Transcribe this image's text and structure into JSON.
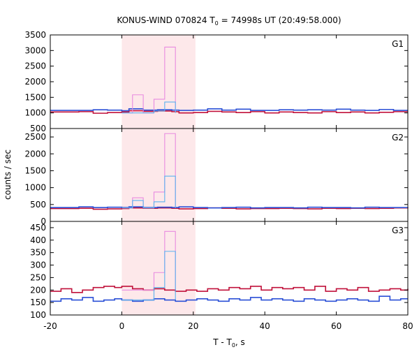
{
  "chart_data": {
    "type": "line",
    "title": {
      "main": "KONUS-WIND 070824 T",
      "sub": "0",
      "rest": " = 74998s UT (20:49:58.000)"
    },
    "xlabel": {
      "main": "T - T",
      "sub": "0",
      "rest": ", s"
    },
    "ylabel": "counts / sec",
    "xlim": [
      -20,
      80
    ],
    "x_ticks": [
      -20,
      0,
      20,
      40,
      60,
      80
    ],
    "highlight_interval": [
      0,
      20.6
    ],
    "colors": {
      "highlight": "#fde8ea",
      "red_series": "#c0103a",
      "blue_series": "#2a4fd6",
      "pink_series": "#e88ae0",
      "cyan_series": "#5ab2f0",
      "reference_line": "#c0c0c0"
    },
    "panels": [
      {
        "label": "G1",
        "ylim": [
          500,
          3500
        ],
        "y_ticks": [
          500,
          1000,
          1500,
          2000,
          2500,
          3000,
          3500
        ],
        "series": [
          {
            "role": "red",
            "x": [
              -20,
              -12,
              -8,
              -4,
              0,
              2,
              6,
              10,
              14,
              16,
              20,
              24,
              28,
              32,
              36,
              40,
              44,
              48,
              52,
              56,
              60,
              64,
              68,
              72,
              76,
              80
            ],
            "y": [
              1030,
              1040,
              990,
              1010,
              1030,
              1070,
              1050,
              1060,
              1040,
              1000,
              1010,
              1050,
              1030,
              1010,
              1040,
              1000,
              1030,
              1010,
              1000,
              1040,
              1010,
              1030,
              1000,
              1020,
              1040,
              1040
            ]
          },
          {
            "role": "blue",
            "x": [
              -20,
              -12,
              -8,
              -4,
              0,
              2,
              6,
              10,
              14,
              16,
              20,
              24,
              28,
              32,
              36,
              40,
              44,
              48,
              52,
              56,
              60,
              64,
              68,
              72,
              76,
              80
            ],
            "y": [
              1080,
              1080,
              1100,
              1090,
              1070,
              1130,
              1090,
              1100,
              1090,
              1080,
              1090,
              1130,
              1090,
              1120,
              1080,
              1080,
              1100,
              1090,
              1100,
              1090,
              1120,
              1090,
              1080,
              1110,
              1080,
              1080
            ]
          },
          {
            "role": "pink",
            "x": [
              0,
              3,
              6,
              9,
              12
            ],
            "y": [
              1000,
              1580,
              1000,
              1440,
              3110
            ]
          },
          {
            "role": "cyan",
            "x": [
              0,
              9,
              12
            ],
            "y": [
              1000,
              1060,
              1350
            ]
          }
        ]
      },
      {
        "label": "G2",
        "ylim": [
          0,
          2750
        ],
        "y_ticks": [
          0,
          500,
          1000,
          1500,
          2000,
          2500
        ],
        "series": [
          {
            "role": "red",
            "x": [
              -20,
              -12,
              -8,
              -4,
              0,
              2,
              6,
              10,
              14,
              16,
              20,
              24,
              28,
              32,
              36,
              40,
              44,
              48,
              52,
              56,
              60,
              64,
              68,
              72,
              76,
              80
            ],
            "y": [
              380,
              390,
              360,
              370,
              380,
              400,
              390,
              400,
              390,
              370,
              380,
              400,
              390,
              370,
              380,
              380,
              390,
              380,
              370,
              390,
              380,
              390,
              380,
              390,
              400,
              390
            ]
          },
          {
            "role": "blue",
            "x": [
              -20,
              -12,
              -8,
              -4,
              0,
              2,
              6,
              10,
              14,
              16,
              20,
              24,
              28,
              32,
              36,
              40,
              44,
              48,
              52,
              56,
              60,
              64,
              68,
              72,
              76,
              80
            ],
            "y": [
              410,
              430,
              410,
              420,
              410,
              430,
              410,
              420,
              410,
              430,
              410,
              400,
              410,
              420,
              400,
              410,
              410,
              400,
              420,
              410,
              410,
              400,
              420,
              410,
              410,
              410
            ]
          },
          {
            "role": "pink",
            "x": [
              0,
              3,
              6,
              9,
              12
            ],
            "y": [
              400,
              700,
              400,
              870,
              2600
            ]
          },
          {
            "role": "cyan",
            "x": [
              0,
              3,
              6,
              9,
              12
            ],
            "y": [
              400,
              620,
              400,
              580,
              1340
            ]
          }
        ]
      },
      {
        "label": "G3",
        "ylim": [
          100,
          475
        ],
        "y_ticks": [
          100,
          150,
          200,
          250,
          300,
          350,
          400,
          450
        ],
        "series": [
          {
            "role": "red",
            "x": [
              -20,
              -17,
              -14,
              -11,
              -8,
              -5,
              -2,
              0,
              3,
              6,
              9,
              12,
              15,
              18,
              21,
              24,
              27,
              30,
              33,
              36,
              39,
              42,
              45,
              48,
              51,
              54,
              57,
              60,
              63,
              66,
              69,
              72,
              75,
              78,
              80
            ],
            "y": [
              195,
              205,
              190,
              200,
              210,
              215,
              210,
              215,
              205,
              200,
              205,
              200,
              195,
              200,
              195,
              205,
              200,
              210,
              205,
              215,
              200,
              210,
              205,
              210,
              200,
              215,
              195,
              205,
              200,
              210,
              195,
              200,
              205,
              200,
              205
            ]
          },
          {
            "role": "blue",
            "x": [
              -20,
              -17,
              -14,
              -11,
              -8,
              -5,
              -2,
              0,
              3,
              6,
              9,
              12,
              15,
              18,
              21,
              24,
              27,
              30,
              33,
              36,
              39,
              42,
              45,
              48,
              51,
              54,
              57,
              60,
              63,
              66,
              69,
              72,
              75,
              78,
              80
            ],
            "y": [
              155,
              165,
              160,
              170,
              155,
              160,
              165,
              160,
              155,
              160,
              165,
              160,
              155,
              160,
              165,
              160,
              155,
              165,
              160,
              170,
              160,
              165,
              160,
              155,
              165,
              160,
              155,
              160,
              165,
              160,
              155,
              175,
              160,
              165,
              165
            ]
          },
          {
            "role": "pink",
            "x": [
              0,
              3,
              6,
              9,
              12
            ],
            "y": [
              200,
              200,
              200,
              270,
              435
            ]
          },
          {
            "role": "cyan",
            "x": [
              0,
              3,
              6,
              9,
              12
            ],
            "y": [
              160,
              160,
              160,
              210,
              355
            ]
          }
        ]
      }
    ]
  }
}
